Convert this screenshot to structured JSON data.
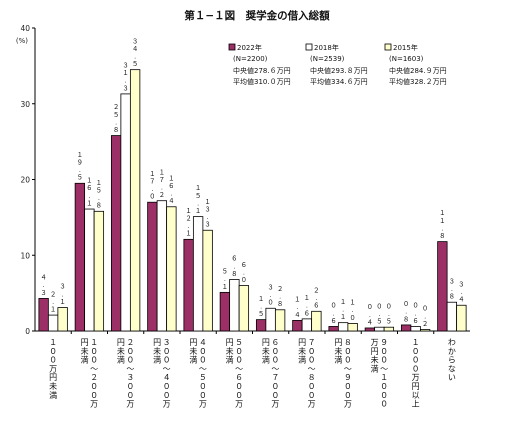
{
  "chart_data": {
    "type": "bar",
    "title": "第１−１図　奨学金の借入総額",
    "ylabel": "(%)",
    "ylim": [
      0,
      40
    ],
    "yticks": [
      0,
      10,
      20,
      30,
      40
    ],
    "grid": false,
    "legend_position": "top-right",
    "categories": [
      "１００万円未満",
      "１００〜２００万円未満",
      "２００〜３００万円未満",
      "３００〜４００万円未満",
      "４００〜５００万円未満",
      "５００〜６００万円未満",
      "６００〜７００万円未満",
      "７００〜８００万円未満",
      "８００〜９００万円未満",
      "９００〜１０００万円未満",
      "１０００万円以上",
      "わからない"
    ],
    "series": [
      {
        "name": "2022年",
        "n": "(N=2200)",
        "median": "中央値278.６万円",
        "mean": "平均値310.０万円",
        "color": "#9b2f66",
        "values": [
          4.3,
          19.5,
          25.8,
          17.0,
          12.1,
          5.1,
          1.5,
          1.4,
          0.6,
          0.4,
          0.8,
          11.8
        ],
        "value_labels": [
          "４.３",
          "１９.５",
          "２５.８",
          "１７.０",
          "１２.１",
          "５.１",
          "１.５",
          "１.４",
          "０.６",
          "０.４",
          "０.８",
          "１１.８"
        ]
      },
      {
        "name": "2018年",
        "n": "(N=2539)",
        "median": "中央値293.８万円",
        "mean": "平均値334.６万円",
        "color": "#ffffff",
        "values": [
          2.1,
          16.1,
          31.3,
          17.2,
          15.1,
          6.8,
          3.0,
          1.6,
          1.1,
          0.5,
          0.6,
          3.8
        ],
        "value_labels": [
          "２.１",
          "１６.１",
          "３１.３",
          "１７.２",
          "１５.１",
          "６.８",
          "３.０",
          "１.６",
          "１.１",
          "０.５",
          "０.６",
          "３.８"
        ]
      },
      {
        "name": "2015年",
        "n": "(N=1603)",
        "median": "中央値284.９万円",
        "mean": "平均値328.２万円",
        "color": "#ffffcc",
        "values": [
          3.1,
          15.8,
          34.5,
          16.4,
          13.3,
          6.0,
          2.8,
          2.6,
          1.0,
          0.5,
          0.2,
          3.4
        ],
        "value_labels": [
          "３.１",
          "１５.８",
          "３４.５",
          "１６.４",
          "１３.３",
          "６.０",
          "２.８",
          "２.６",
          "１.０",
          "０.５",
          "０.２",
          "３.４"
        ]
      }
    ]
  }
}
